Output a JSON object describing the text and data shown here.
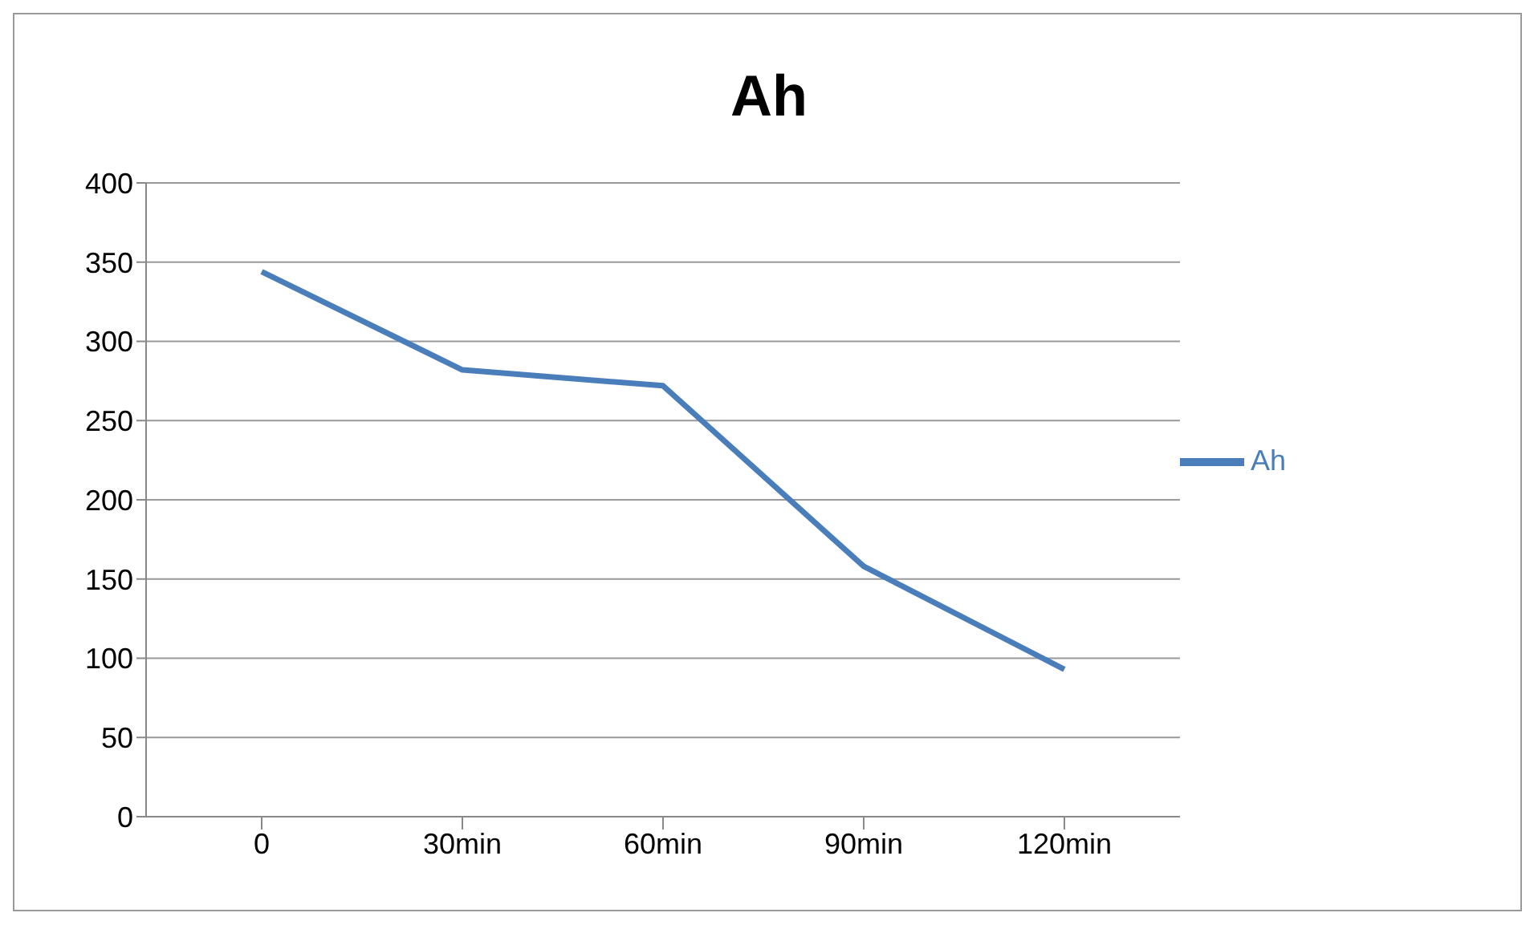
{
  "chart_data": {
    "type": "line",
    "title": "Ah",
    "categories": [
      "0",
      "30min",
      "60min",
      "90min",
      "120min"
    ],
    "series": [
      {
        "name": "Ah",
        "color": "#4a7ebb",
        "values": [
          344,
          282,
          272,
          158,
          93
        ]
      }
    ],
    "ylim": [
      0,
      400
    ],
    "yticks": [
      0,
      50,
      100,
      150,
      200,
      250,
      300,
      350,
      400
    ],
    "grid": "y",
    "legend": "right",
    "marker": "none",
    "line_style": "solid"
  }
}
